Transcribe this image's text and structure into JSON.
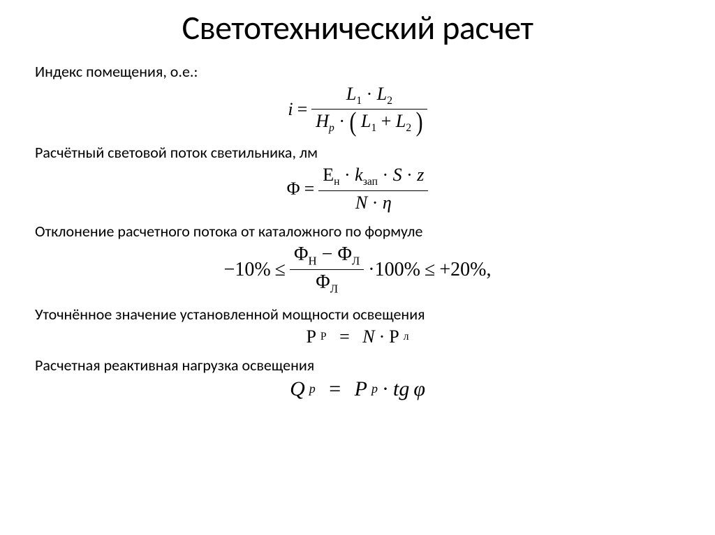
{
  "title": "Светотехнический расчет",
  "sections": {
    "s1": {
      "label": "Индекс помещения, о.е.:"
    },
    "s2": {
      "label": "Расчётный световой поток светильника, лм"
    },
    "s3": {
      "label": "Отклонение расчетного потока от каталожного по формуле"
    },
    "s4": {
      "label": "Уточнённое значение установленной мощности освещения"
    },
    "s5": {
      "label": "Расчетная реактивная нагрузка освещения"
    }
  },
  "formulas": {
    "f1": {
      "lhs": "i",
      "eq": "=",
      "num_L1": "L",
      "num_s1": "1",
      "dot": "·",
      "num_L2": "L",
      "num_s2": "2",
      "den_H": "H",
      "den_Hs": "p",
      "den_L1": "L",
      "den_s1": "1",
      "plus": "+",
      "den_L2": "L",
      "den_s2": "2"
    },
    "f2": {
      "lhs": "Φ",
      "eq": "=",
      "E": "E",
      "Es": "н",
      "k": "k",
      "ks": "зап",
      "S": "S",
      "z": "z",
      "N": "N",
      "eta": "η",
      "dot": "·"
    },
    "f3": {
      "low": "−10%",
      "le1": "≤",
      "PhiN": "Φ",
      "PhiNs": "Н",
      "minus": "−",
      "PhiL": "Φ",
      "PhiLs": "Л",
      "denPhi": "Φ",
      "denPhis": "Л",
      "mult": "·100%",
      "le2": "≤",
      "high": "+20%,",
      "dot": "·"
    },
    "f4": {
      "P1": "P",
      "P1s": "Р",
      "eq": "=",
      "N": "N",
      "dot": "·",
      "P2": "P",
      "P2s": "л"
    },
    "f5": {
      "Q": "Q",
      "Qs": "p",
      "eq": "=",
      "P": "P",
      "Ps": "p",
      "dot": "·",
      "tg": "tg",
      "phi": "φ"
    }
  },
  "style": {
    "background_color": "#ffffff",
    "text_color": "#000000",
    "title_fontsize": 48,
    "label_fontsize": 22,
    "formula_fontsize": 26,
    "font_family_body": "Calibri",
    "font_family_math": "Cambria Math"
  }
}
